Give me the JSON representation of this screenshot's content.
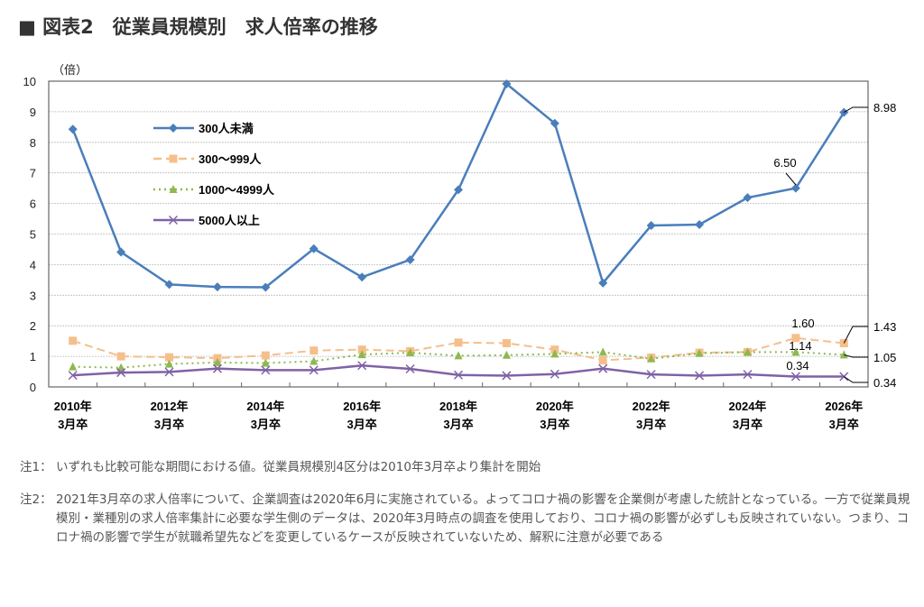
{
  "title": "■ 図表2　従業員規模別　求人倍率の推移",
  "chart_data": {
    "type": "line",
    "title": "",
    "ylabel": "（倍）",
    "xlabel": "",
    "ylim": [
      0,
      10
    ],
    "yticks": [
      0,
      1,
      2,
      3,
      4,
      5,
      6,
      7,
      8,
      9,
      10
    ],
    "grid": true,
    "legend_position": "top-left",
    "categories": [
      "2010年3月卒",
      "2011年3月卒",
      "2012年3月卒",
      "2013年3月卒",
      "2014年3月卒",
      "2015年3月卒",
      "2016年3月卒",
      "2017年3月卒",
      "2018年3月卒",
      "2019年3月卒",
      "2020年3月卒",
      "2021年3月卒",
      "2022年3月卒",
      "2023年3月卒",
      "2024年3月卒",
      "2025年3月卒",
      "2026年3月卒"
    ],
    "tick_labels": [
      [
        "2010年",
        "3月卒"
      ],
      [
        "2012年",
        "3月卒"
      ],
      [
        "2014年",
        "3月卒"
      ],
      [
        "2016年",
        "3月卒"
      ],
      [
        "2018年",
        "3月卒"
      ],
      [
        "2020年",
        "3月卒"
      ],
      [
        "2022年",
        "3月卒"
      ],
      [
        "2024年",
        "3月卒"
      ],
      [
        "2026年",
        "3月卒"
      ]
    ],
    "series": [
      {
        "name": "300人未満",
        "color": "#4a7ebb",
        "style": "solid",
        "marker": "diamond",
        "values": [
          8.43,
          4.41,
          3.35,
          3.27,
          3.26,
          4.52,
          3.59,
          4.16,
          6.45,
          9.91,
          8.62,
          3.4,
          5.28,
          5.31,
          6.19,
          6.5,
          8.98
        ]
      },
      {
        "name": "300〜999人",
        "color": "#f5bf8c",
        "style": "dashed",
        "marker": "square",
        "values": [
          1.51,
          1.0,
          0.97,
          0.94,
          1.03,
          1.19,
          1.22,
          1.17,
          1.45,
          1.43,
          1.22,
          0.87,
          0.96,
          1.12,
          1.14,
          1.6,
          1.43
        ]
      },
      {
        "name": "1000〜4999人",
        "color": "#8db94f",
        "style": "dotted",
        "marker": "triangle",
        "values": [
          0.66,
          0.63,
          0.75,
          0.8,
          0.78,
          0.84,
          1.06,
          1.12,
          1.02,
          1.04,
          1.08,
          1.14,
          0.92,
          1.1,
          1.14,
          1.14,
          1.05
        ]
      },
      {
        "name": "5000人以上",
        "color": "#7f62a5",
        "style": "solid",
        "marker": "x",
        "values": [
          0.38,
          0.47,
          0.49,
          0.6,
          0.55,
          0.55,
          0.7,
          0.59,
          0.39,
          0.37,
          0.42,
          0.6,
          0.41,
          0.37,
          0.41,
          0.34,
          0.34
        ]
      }
    ],
    "annotations": {
      "a650": "6.50",
      "a160": "1.60",
      "a114": "1.14",
      "a034": "0.34",
      "r898": "8.98",
      "r143": "1.43",
      "r105": "1.05",
      "r034": "0.34"
    }
  },
  "notes": [
    {
      "label": "注1：",
      "text": "いずれも比較可能な期間における値。従業員規模別4区分は2010年3月卒より集計を開始"
    },
    {
      "label": "注2：",
      "text": "2021年3月卒の求人倍率について、企業調査は2020年6月に実施されている。よってコロナ禍の影響を企業側が考慮した統計となっている。一方で従業員規模別・業種別の求人倍率集計に必要な学生側のデータは、2020年3月時点の調査を使用しており、コロナ禍の影響が必ずしも反映されていない。つまり、コロナ禍の影響で学生が就職希望先などを変更しているケースが反映されていないため、解釈に注意が必要である"
    }
  ]
}
